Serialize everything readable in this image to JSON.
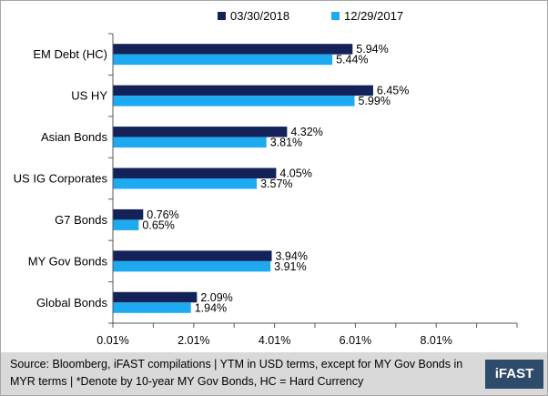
{
  "chart_data": {
    "type": "bar",
    "orientation": "horizontal",
    "title": "",
    "xlabel": "",
    "ylabel": "",
    "categories": [
      "EM Debt (HC)",
      "US HY",
      "Asian Bonds",
      "US IG Corporates",
      "G7 Bonds",
      "MY Gov Bonds",
      "Global Bonds"
    ],
    "series": [
      {
        "name": "03/30/2018",
        "color": "#14225a",
        "values": [
          5.94,
          6.45,
          4.32,
          4.05,
          0.76,
          3.94,
          2.09
        ],
        "labels": [
          "5.94%",
          "6.45%",
          "4.32%",
          "4.05%",
          "0.76%",
          "3.94%",
          "2.09%"
        ]
      },
      {
        "name": "12/29/2017",
        "color": "#1eaaf0",
        "values": [
          5.44,
          5.99,
          3.81,
          3.57,
          0.65,
          3.91,
          1.94
        ],
        "labels": [
          "5.44%",
          "5.99%",
          "3.81%",
          "3.57%",
          "0.65%",
          "3.91%",
          "1.94%"
        ]
      }
    ],
    "xlim": [
      0.01,
      10.01
    ],
    "xticks": [
      0.01,
      2.01,
      4.01,
      6.01,
      8.01
    ],
    "xtick_labels": [
      "0.01%",
      "2.01%",
      "4.01%",
      "6.01%",
      "8.01%"
    ],
    "legend_position": "top",
    "grid": false
  },
  "footer": {
    "source_text": "Source: Bloomberg, iFAST compilations | YTM in USD terms, except for MY Gov Bonds in MYR terms | *Denote by 10-year MY Gov Bonds, HC = Hard Currency",
    "logo_text": "iFAST",
    "logo_color": "#2e4b6b"
  }
}
